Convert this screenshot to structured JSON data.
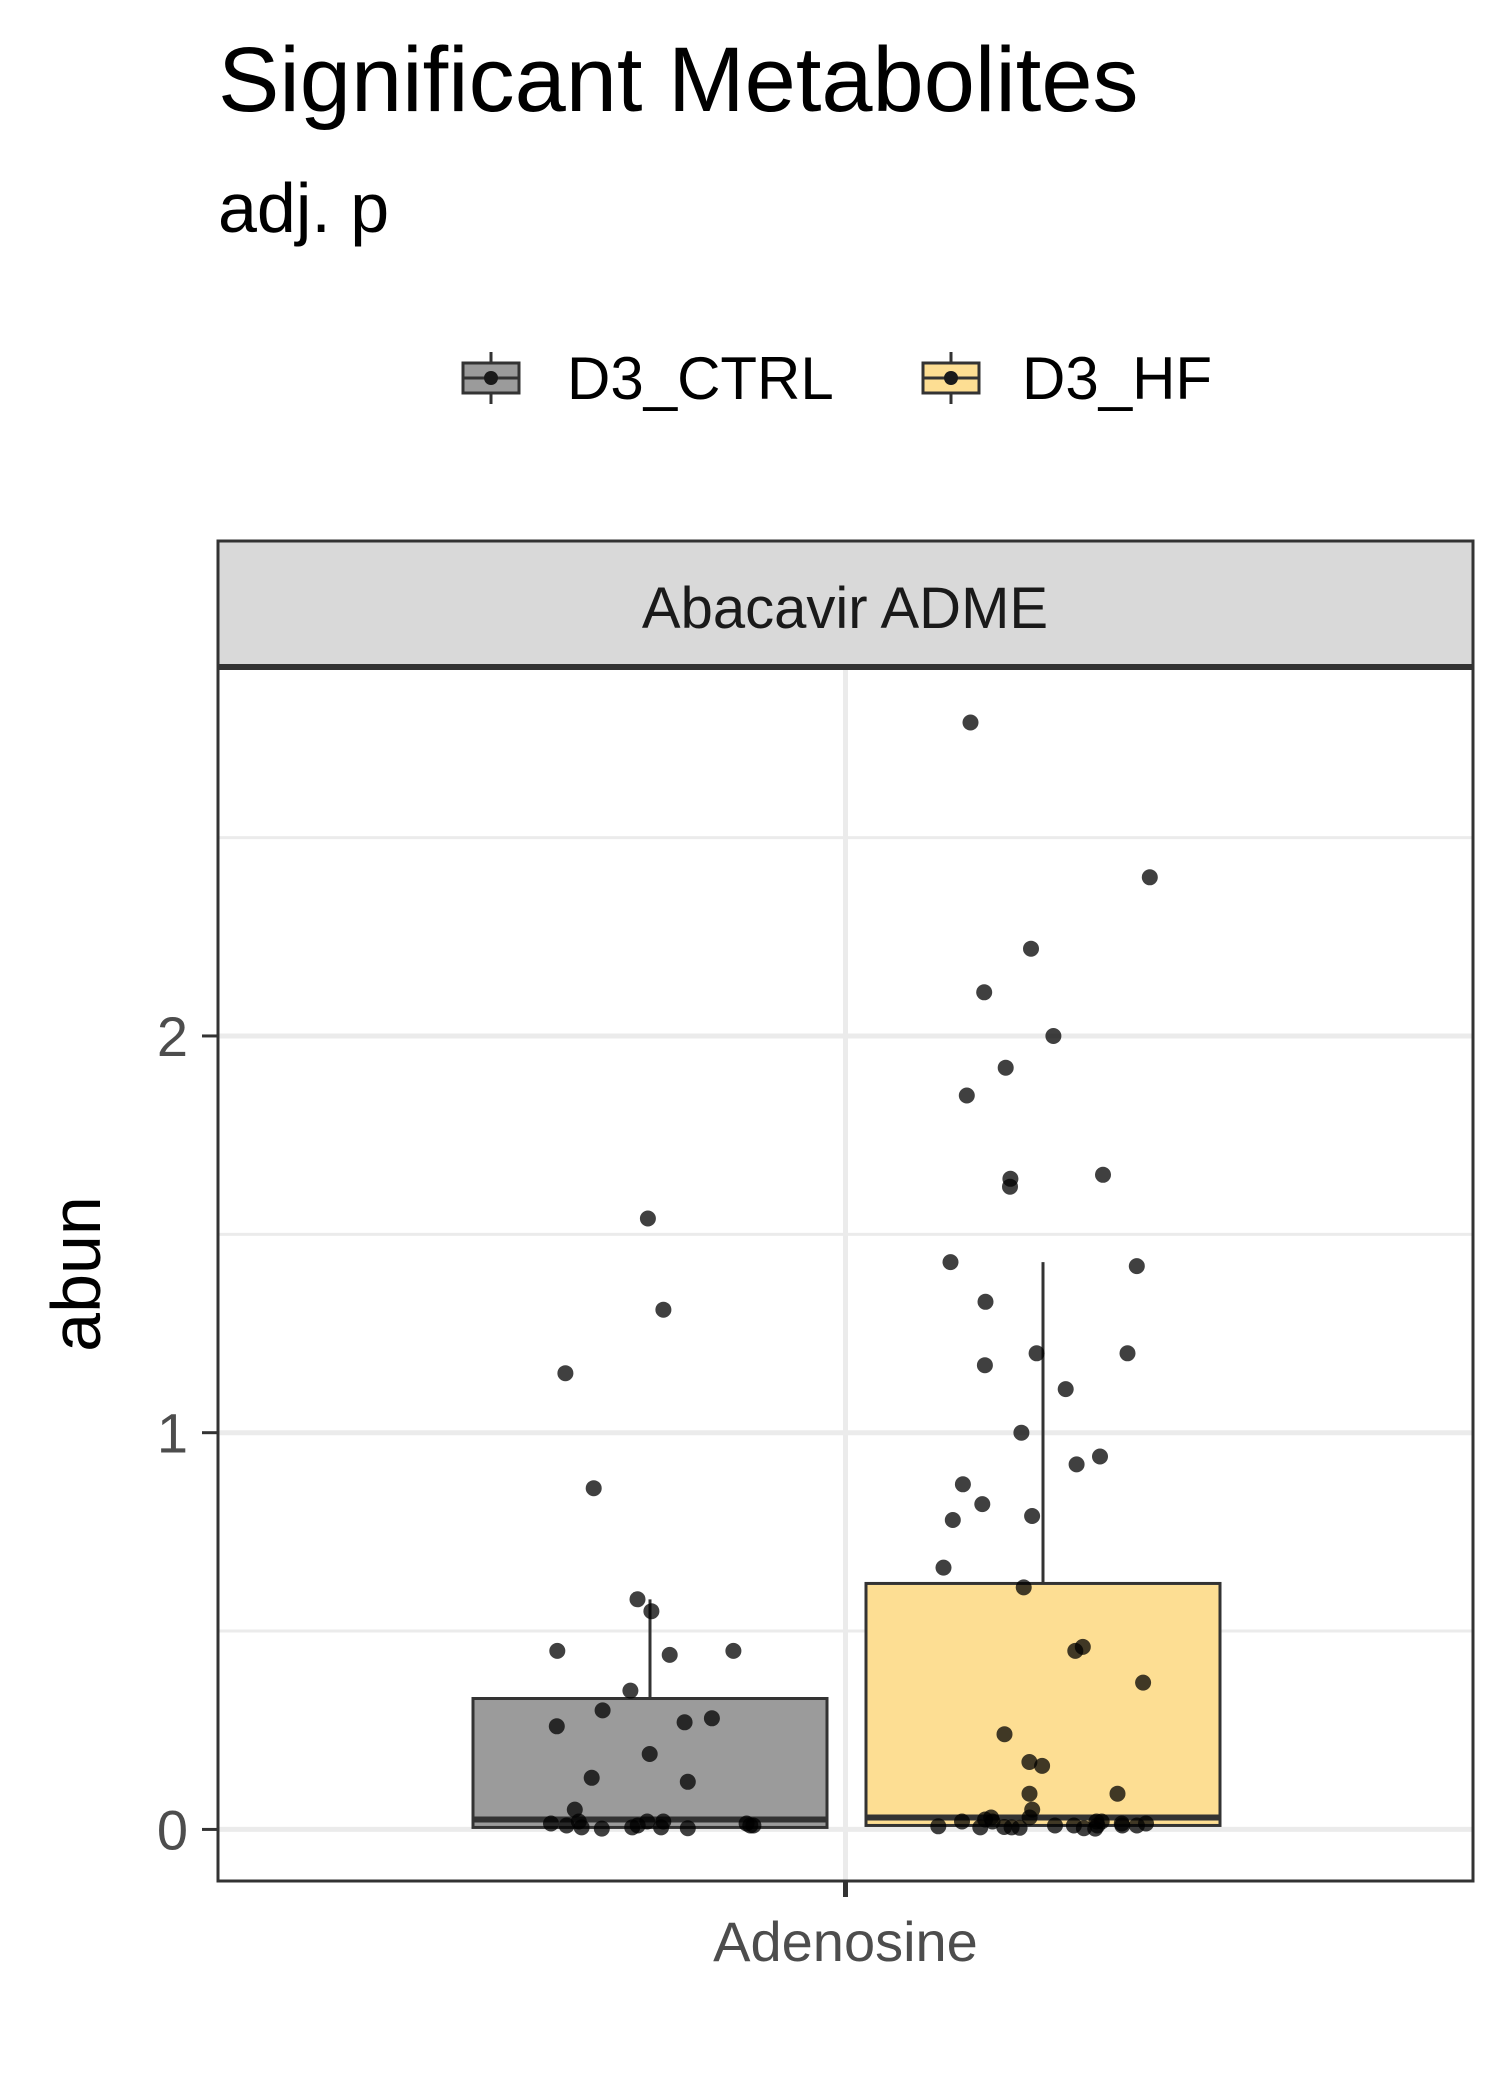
{
  "chart_data": {
    "type": "box",
    "title": "Significant Metabolites",
    "subtitle": "adj. p",
    "facet": "Abacavir ADME",
    "xlabel": "",
    "ylabel": "abun",
    "ylim": [
      -0.13,
      2.93
    ],
    "y_ticks": [
      0,
      1,
      2
    ],
    "y_tick_labels": [
      "0",
      "1",
      "2"
    ],
    "categories": [
      "Adenosine"
    ],
    "grid": true,
    "legend_position": "top",
    "series": [
      {
        "name": "D3_CTRL",
        "color": "#9b9b9b",
        "box": {
          "min": 0.0,
          "q1": 0.005,
          "median": 0.025,
          "q3": 0.33,
          "max": 0.58
        },
        "points": [
          1.54,
          1.31,
          1.15,
          0.86,
          0.58,
          0.55,
          0.45,
          0.45,
          0.44,
          0.35,
          0.3,
          0.28,
          0.27,
          0.26,
          0.19,
          0.13,
          0.12,
          0.05,
          0.02,
          0.02,
          0.02,
          0.015,
          0.015,
          0.01,
          0.01,
          0.01,
          0.01,
          0.005,
          0.005,
          0.005,
          0.003,
          0.002
        ]
      },
      {
        "name": "D3_HF",
        "color": "#fdde93",
        "box": {
          "min": 0.0,
          "q1": 0.01,
          "median": 0.03,
          "q3": 0.62,
          "max": 1.43
        },
        "points": [
          2.79,
          2.4,
          2.22,
          2.11,
          2.0,
          1.92,
          1.85,
          1.65,
          1.64,
          1.62,
          1.43,
          1.42,
          1.33,
          1.2,
          1.2,
          1.17,
          1.11,
          1.0,
          0.94,
          0.92,
          0.87,
          0.82,
          0.79,
          0.78,
          0.66,
          0.61,
          0.46,
          0.45,
          0.37,
          0.24,
          0.17,
          0.16,
          0.09,
          0.09,
          0.05,
          0.03,
          0.03,
          0.025,
          0.02,
          0.02,
          0.02,
          0.02,
          0.015,
          0.015,
          0.01,
          0.01,
          0.01,
          0.01,
          0.01,
          0.008,
          0.006,
          0.005,
          0.005,
          0.004,
          0.003,
          0.002
        ]
      }
    ]
  }
}
